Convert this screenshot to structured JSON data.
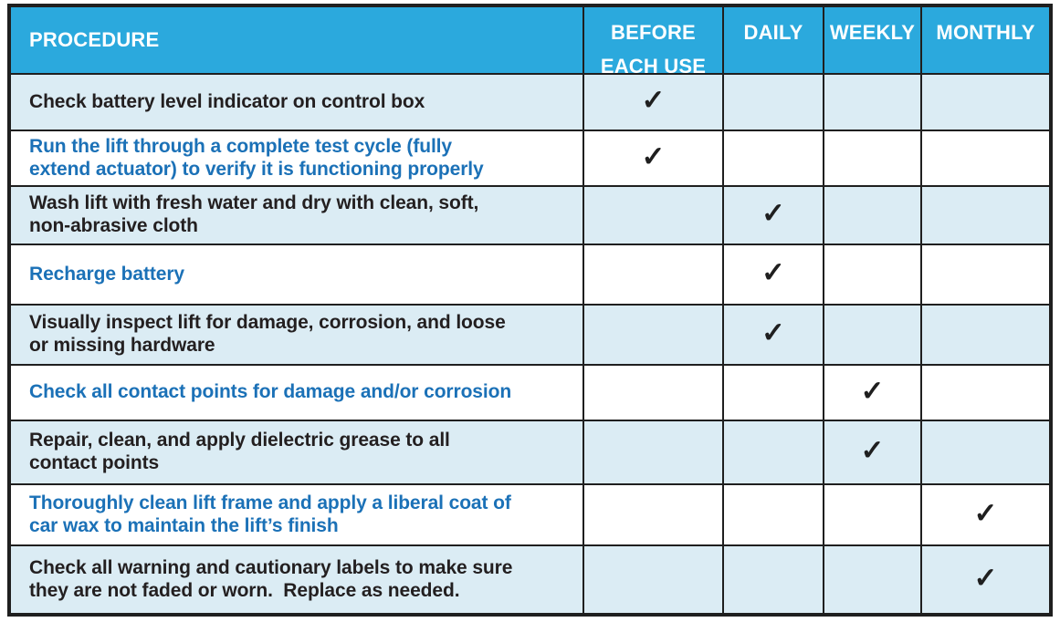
{
  "table": {
    "title_semantic": "maintenance-schedule-table",
    "check_glyph": "✓",
    "colors": {
      "header_bg": "#2BA9DD",
      "row_alt_bg": "#DBECF4",
      "row_bg": "#FFFFFF",
      "text_dark": "#231F20",
      "text_blue": "#1B71B7",
      "header_text": "#FFFFFF",
      "border": "#1F1F1F"
    },
    "columns": {
      "procedure": "PROCEDURE",
      "before_line1": "BEFORE",
      "before_line2": "EACH USE",
      "daily": "DAILY",
      "weekly": "WEEKLY",
      "monthly": "MONTHLY"
    },
    "rows": [
      {
        "procedure": "Check battery level indicator on control box",
        "before": "✓",
        "daily": "",
        "weekly": "",
        "monthly": ""
      },
      {
        "procedure": "Run the lift through a complete test cycle (fully\nextend actuator) to verify it is functioning properly",
        "before": "✓",
        "daily": "",
        "weekly": "",
        "monthly": ""
      },
      {
        "procedure": "Wash lift with fresh water and dry with clean, soft,\nnon-abrasive cloth",
        "before": "",
        "daily": "✓",
        "weekly": "",
        "monthly": ""
      },
      {
        "procedure": "Recharge battery",
        "before": "",
        "daily": "✓",
        "weekly": "",
        "monthly": ""
      },
      {
        "procedure": "Visually inspect lift for damage, corrosion, and loose\nor missing hardware",
        "before": "",
        "daily": "✓",
        "weekly": "",
        "monthly": ""
      },
      {
        "procedure": "Check all contact points for damage and/or corrosion",
        "before": "",
        "daily": "",
        "weekly": "✓",
        "monthly": ""
      },
      {
        "procedure": "Repair, clean, and apply dielectric grease to all\ncontact points",
        "before": "",
        "daily": "",
        "weekly": "✓",
        "monthly": ""
      },
      {
        "procedure": "Thoroughly clean lift frame and apply a liberal coat of\ncar wax to maintain the lift’s finish",
        "before": "",
        "daily": "",
        "weekly": "",
        "monthly": "✓"
      },
      {
        "procedure": "Check all warning and cautionary labels to make sure\nthey are not faded or worn.  Replace as needed.",
        "before": "",
        "daily": "",
        "weekly": "",
        "monthly": "✓"
      }
    ]
  }
}
